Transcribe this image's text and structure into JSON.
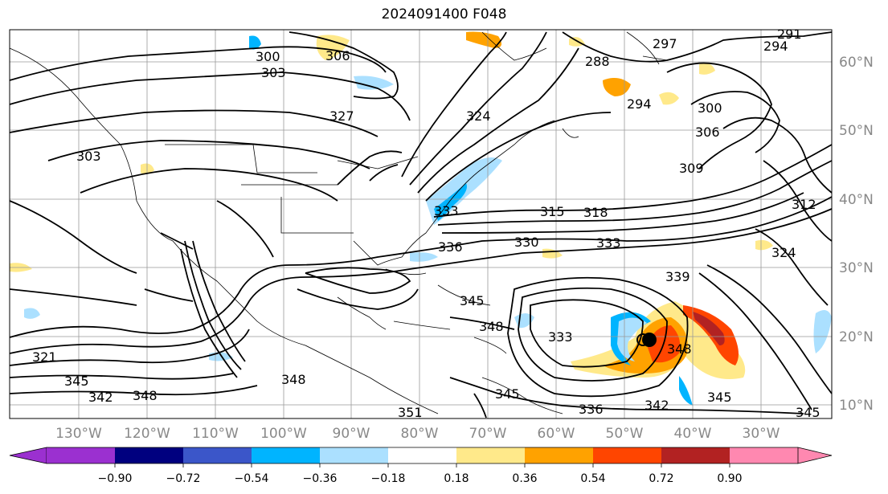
{
  "title": "2024091400 F048",
  "lon_labels": [
    "130°W",
    "120°W",
    "110°W",
    "100°W",
    "90°W",
    "80°W",
    "70°W",
    "60°W",
    "50°W",
    "40°W",
    "30°W"
  ],
  "lat_labels": [
    "60°N",
    "50°N",
    "40°N",
    "30°N",
    "20°N",
    "10°N"
  ],
  "contour_labels": [
    "300",
    "303",
    "306",
    "288",
    "291",
    "294",
    "297",
    "309",
    "312",
    "315",
    "318",
    "321",
    "324",
    "327",
    "330",
    "333",
    "336",
    "339",
    "342",
    "345",
    "348",
    "351"
  ],
  "colorbar": {
    "ticks": [
      "−0.90",
      "−0.72",
      "−0.54",
      "−0.36",
      "−0.18",
      "0.18",
      "0.36",
      "0.54",
      "0.72",
      "0.90"
    ],
    "colors": [
      "#9b30d0",
      "#00007f",
      "#3b56c9",
      "#00b4ff",
      "#abe0ff",
      "#ffffff",
      "#ffe98a",
      "#ffa200",
      "#ff4500",
      "#b22222",
      "#ff88b0"
    ]
  },
  "storm_marker": "tropical-cyclone-symbol"
}
